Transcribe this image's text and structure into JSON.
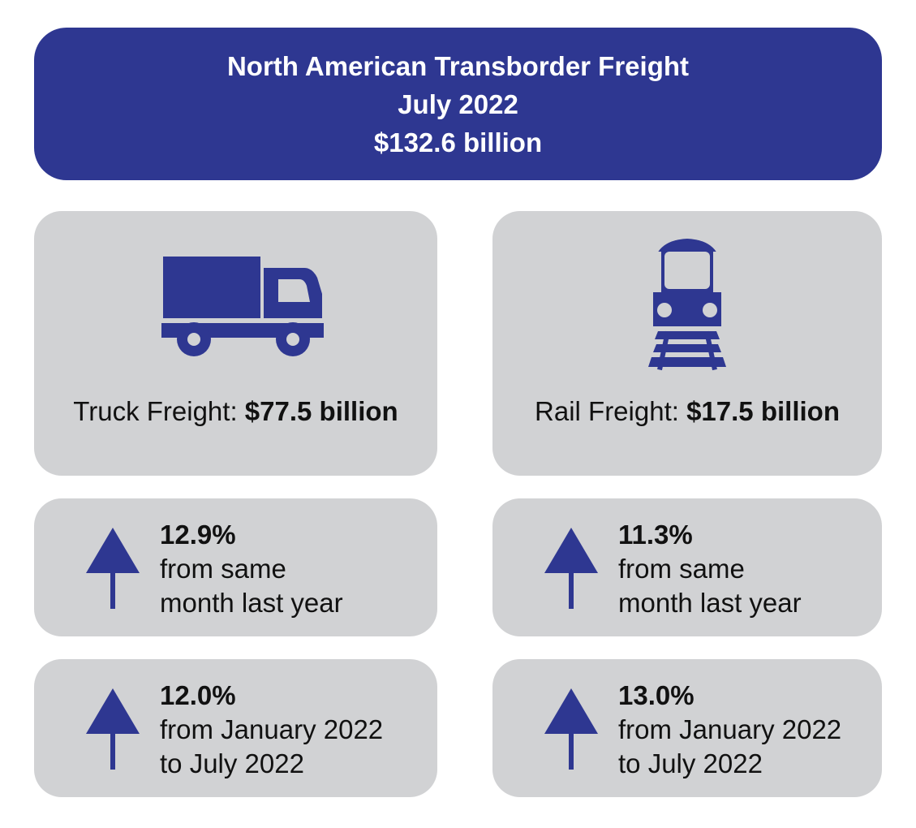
{
  "header": {
    "title": "North American Transborder Freight",
    "period": "July 2022",
    "total": "$132.6 billion"
  },
  "colors": {
    "primary": "#2e3791",
    "card_bg": "#d1d2d4"
  },
  "modes": [
    {
      "icon": "truck-icon",
      "label": "Truck Freight:",
      "value": "$77.5 billion",
      "stats": [
        {
          "pct": "12.9%",
          "line1": "from same",
          "line2": "month last year",
          "direction": "up"
        },
        {
          "pct": "12.0%",
          "line1": "from January 2022",
          "line2": "to July 2022",
          "direction": "up"
        }
      ]
    },
    {
      "icon": "train-icon",
      "label": "Rail Freight:",
      "value": "$17.5 billion",
      "stats": [
        {
          "pct": "11.3%",
          "line1": "from same",
          "line2": "month last year",
          "direction": "up"
        },
        {
          "pct": "13.0%",
          "line1": "from January 2022",
          "line2": "to July 2022",
          "direction": "up"
        }
      ]
    }
  ]
}
